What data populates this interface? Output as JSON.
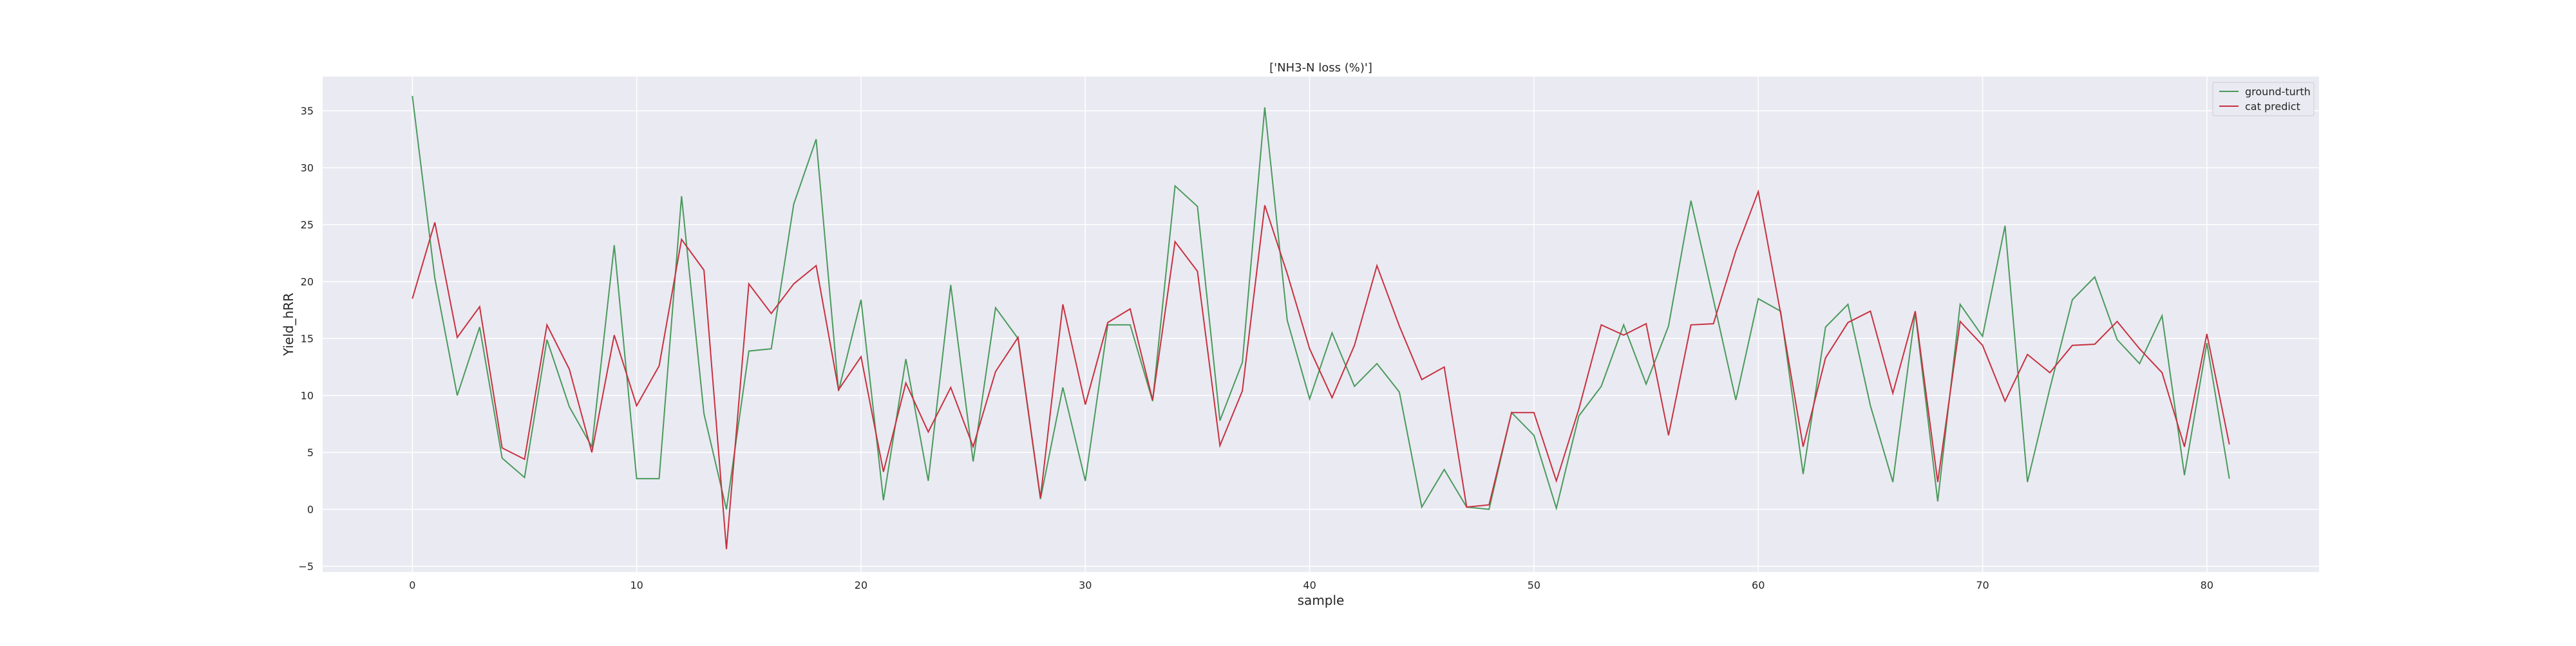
{
  "chart_data": {
    "type": "line",
    "title": "['NH3-N loss (%)']",
    "xlabel": "sample",
    "ylabel": "Yield_hRR",
    "xlim": [
      -4,
      85
    ],
    "ylim": [
      -5.5,
      38
    ],
    "xticks": [
      0,
      10,
      20,
      30,
      40,
      50,
      60,
      70,
      80
    ],
    "yticks": [
      -5,
      0,
      5,
      10,
      15,
      20,
      25,
      30,
      35
    ],
    "grid": true,
    "legend_position": "top-right",
    "x": [
      0,
      1,
      2,
      3,
      4,
      5,
      6,
      7,
      8,
      9,
      10,
      11,
      12,
      13,
      14,
      15,
      16,
      17,
      18,
      19,
      20,
      21,
      22,
      23,
      24,
      25,
      26,
      27,
      28,
      29,
      30,
      31,
      32,
      33,
      34,
      35,
      36,
      37,
      38,
      39,
      40,
      41,
      42,
      43,
      44,
      45,
      46,
      47,
      48,
      49,
      50,
      51,
      52,
      53,
      54,
      55,
      56,
      57,
      58,
      59,
      60,
      61,
      62,
      63,
      64,
      65,
      66,
      67,
      68,
      69,
      70,
      71,
      72,
      73,
      74,
      75,
      76,
      77,
      78,
      79,
      80,
      81
    ],
    "series": [
      {
        "name": "ground-turth",
        "color": "#4a9a5c",
        "values": [
          36.3,
          20.3,
          10.0,
          16.0,
          4.5,
          2.8,
          14.9,
          9.0,
          5.5,
          23.2,
          2.7,
          2.7,
          27.5,
          8.4,
          0.0,
          13.9,
          14.1,
          26.8,
          32.5,
          10.4,
          18.4,
          0.8,
          13.2,
          2.5,
          19.7,
          4.2,
          17.7,
          15.0,
          0.9,
          10.7,
          2.5,
          16.2,
          16.2,
          9.5,
          28.4,
          26.6,
          7.8,
          12.9,
          35.3,
          16.6,
          9.7,
          15.5,
          10.8,
          12.8,
          10.3,
          0.2,
          3.5,
          0.2,
          0.0,
          8.5,
          6.5,
          0.1,
          8.2,
          10.8,
          16.2,
          11.0,
          16.1,
          27.1,
          18.4,
          9.6,
          18.5,
          17.4,
          3.1,
          16.0,
          18.0,
          9.1,
          2.4,
          17.3,
          0.7,
          18.0,
          15.2,
          24.9,
          2.4,
          10.6,
          18.4,
          20.4,
          14.9,
          12.8,
          17.0,
          3.0,
          14.6,
          2.7
        ]
      },
      {
        "name": "cat predict",
        "color": "#c7313f",
        "values": [
          18.5,
          25.2,
          15.1,
          17.8,
          5.4,
          4.4,
          16.2,
          12.3,
          5.0,
          15.3,
          9.1,
          12.6,
          23.7,
          21.0,
          -3.5,
          19.8,
          17.2,
          19.8,
          21.4,
          10.5,
          13.4,
          3.3,
          11.1,
          6.8,
          10.7,
          5.5,
          12.1,
          15.1,
          1.0,
          18.0,
          9.2,
          16.4,
          17.6,
          9.6,
          23.5,
          20.9,
          5.6,
          10.4,
          26.7,
          20.7,
          14.1,
          9.8,
          14.4,
          21.4,
          16.1,
          11.4,
          12.5,
          0.2,
          0.4,
          8.5,
          8.5,
          2.5,
          8.8,
          16.2,
          15.3,
          16.3,
          6.5,
          16.2,
          16.3,
          22.7,
          27.9,
          17.2,
          5.5,
          13.3,
          16.4,
          17.4,
          10.2,
          17.4,
          2.4,
          16.5,
          14.4,
          9.5,
          13.6,
          12.0,
          14.4,
          14.5,
          16.5,
          14.1,
          12.0,
          5.5,
          15.4,
          5.7
        ]
      }
    ]
  }
}
